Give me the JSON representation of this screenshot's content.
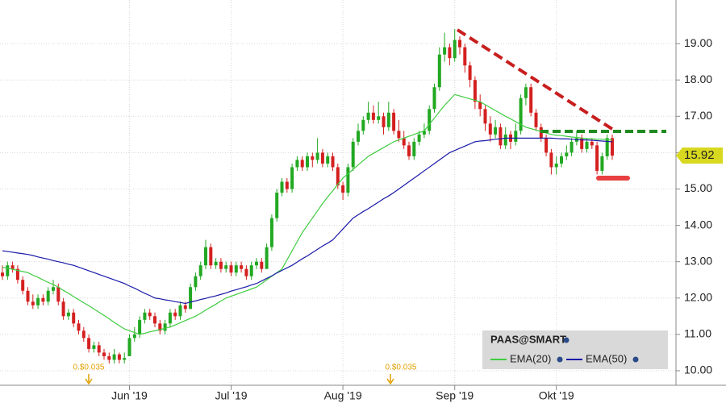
{
  "chart_data": {
    "type": "candlestick",
    "categories": [
      null,
      null,
      null,
      null,
      null,
      null,
      null,
      null,
      null,
      null,
      null,
      null,
      null,
      null,
      null,
      null,
      null,
      null,
      null,
      null,
      null,
      null,
      null,
      null,
      null,
      "Jun '19",
      null,
      null,
      null,
      null,
      null,
      null,
      null,
      null,
      null,
      null,
      null,
      null,
      null,
      null,
      null,
      null,
      null,
      null,
      null,
      "Jul '19",
      null,
      null,
      null,
      null,
      null,
      null,
      null,
      null,
      null,
      null,
      null,
      null,
      null,
      null,
      null,
      null,
      null,
      null,
      null,
      null,
      null,
      "Aug '19",
      null,
      null,
      null,
      null,
      null,
      null,
      null,
      null,
      null,
      null,
      null,
      null,
      null,
      null,
      null,
      null,
      null,
      null,
      null,
      null,
      null,
      "Sep '19",
      null,
      null,
      null,
      null,
      null,
      null,
      null,
      null,
      null,
      null,
      null,
      null,
      null,
      null,
      null,
      null,
      null,
      null,
      null,
      "Okt '19",
      null,
      null,
      null,
      null,
      null,
      null,
      null,
      null,
      null,
      null,
      null
    ],
    "ohlc": [
      [
        12.7,
        12.9,
        12.5,
        12.6
      ],
      [
        12.6,
        13.0,
        12.5,
        12.9
      ],
      [
        12.9,
        13.0,
        12.7,
        12.8
      ],
      [
        12.8,
        12.9,
        12.4,
        12.5
      ],
      [
        12.5,
        12.6,
        12.1,
        12.2
      ],
      [
        12.2,
        12.3,
        11.8,
        11.9
      ],
      [
        11.9,
        12.1,
        11.7,
        11.8
      ],
      [
        11.8,
        12.1,
        11.7,
        12.0
      ],
      [
        12.0,
        12.1,
        11.8,
        11.9
      ],
      [
        11.9,
        12.3,
        11.8,
        12.2
      ],
      [
        12.2,
        12.5,
        12.1,
        12.3
      ],
      [
        12.3,
        12.4,
        11.8,
        11.9
      ],
      [
        11.9,
        12.0,
        11.4,
        11.5
      ],
      [
        11.5,
        11.7,
        11.4,
        11.6
      ],
      [
        11.6,
        11.7,
        11.2,
        11.3
      ],
      [
        11.3,
        11.4,
        11.0,
        11.1
      ],
      [
        11.1,
        11.2,
        10.8,
        10.9
      ],
      [
        10.9,
        11.0,
        10.5,
        10.6
      ],
      [
        10.6,
        10.8,
        10.5,
        10.7
      ],
      [
        10.7,
        10.8,
        10.4,
        10.5
      ],
      [
        10.5,
        10.6,
        10.3,
        10.4
      ],
      [
        10.4,
        10.5,
        10.2,
        10.3
      ],
      [
        10.3,
        10.6,
        10.2,
        10.45
      ],
      [
        10.45,
        10.5,
        10.2,
        10.3
      ],
      [
        10.3,
        10.5,
        10.2,
        10.35
      ],
      [
        10.4,
        11.0,
        10.4,
        10.9
      ],
      [
        10.9,
        11.2,
        10.8,
        11.0
      ],
      [
        11.0,
        11.5,
        10.9,
        11.4
      ],
      [
        11.4,
        11.7,
        11.3,
        11.6
      ],
      [
        11.6,
        11.7,
        11.4,
        11.5
      ],
      [
        11.5,
        11.6,
        11.2,
        11.3
      ],
      [
        11.3,
        11.4,
        11.0,
        11.1
      ],
      [
        11.1,
        11.4,
        11.0,
        11.3
      ],
      [
        11.3,
        11.7,
        11.2,
        11.6
      ],
      [
        11.6,
        11.7,
        11.4,
        11.5
      ],
      [
        11.5,
        11.9,
        11.4,
        11.8
      ],
      [
        11.8,
        11.9,
        11.6,
        11.7
      ],
      [
        11.7,
        12.4,
        11.7,
        12.3
      ],
      [
        12.3,
        12.7,
        12.2,
        12.6
      ],
      [
        12.6,
        13.0,
        12.5,
        12.9
      ],
      [
        12.9,
        13.6,
        12.8,
        13.4
      ],
      [
        13.4,
        13.5,
        12.8,
        12.9
      ],
      [
        12.9,
        13.1,
        12.8,
        13.0
      ],
      [
        13.0,
        13.1,
        12.7,
        12.8
      ],
      [
        12.8,
        13.0,
        12.7,
        12.9
      ],
      [
        12.9,
        13.0,
        12.6,
        12.7
      ],
      [
        12.7,
        13.0,
        12.6,
        12.9
      ],
      [
        12.9,
        13.0,
        12.7,
        12.8
      ],
      [
        12.8,
        12.9,
        12.5,
        12.6
      ],
      [
        12.6,
        13.0,
        12.5,
        12.9
      ],
      [
        12.9,
        13.1,
        12.8,
        13.0
      ],
      [
        13.0,
        13.1,
        12.7,
        12.8
      ],
      [
        12.8,
        13.5,
        12.8,
        13.4
      ],
      [
        13.4,
        14.3,
        13.3,
        14.2
      ],
      [
        14.2,
        15.0,
        14.1,
        14.9
      ],
      [
        14.9,
        15.3,
        14.8,
        15.2
      ],
      [
        15.2,
        15.3,
        14.9,
        15.0
      ],
      [
        15.0,
        15.7,
        14.9,
        15.6
      ],
      [
        15.6,
        15.9,
        15.5,
        15.8
      ],
      [
        15.8,
        15.9,
        15.5,
        15.6
      ],
      [
        15.6,
        16.0,
        15.5,
        15.9
      ],
      [
        15.9,
        16.0,
        15.6,
        15.8
      ],
      [
        15.8,
        16.4,
        15.7,
        16.0
      ],
      [
        16.0,
        16.1,
        15.6,
        15.7
      ],
      [
        15.7,
        16.0,
        15.6,
        15.9
      ],
      [
        15.9,
        16.0,
        15.5,
        15.6
      ],
      [
        15.6,
        15.7,
        15.0,
        15.1
      ],
      [
        15.1,
        15.2,
        14.7,
        14.9
      ],
      [
        14.9,
        15.7,
        14.8,
        15.6
      ],
      [
        15.6,
        16.4,
        15.5,
        16.3
      ],
      [
        16.3,
        16.8,
        16.2,
        16.6
      ],
      [
        16.6,
        17.0,
        16.5,
        16.9
      ],
      [
        16.9,
        17.4,
        16.8,
        17.1
      ],
      [
        17.1,
        17.3,
        16.8,
        16.9
      ],
      [
        16.9,
        17.4,
        16.8,
        17.0
      ],
      [
        17.0,
        17.1,
        16.5,
        16.7
      ],
      [
        16.7,
        17.4,
        16.6,
        17.1
      ],
      [
        17.1,
        17.2,
        16.5,
        16.6
      ],
      [
        16.6,
        16.9,
        16.3,
        16.4
      ],
      [
        16.4,
        16.6,
        16.1,
        16.2
      ],
      [
        16.2,
        16.3,
        15.8,
        15.9
      ],
      [
        15.9,
        16.4,
        15.8,
        16.3
      ],
      [
        16.3,
        16.6,
        16.2,
        16.5
      ],
      [
        16.5,
        16.8,
        16.4,
        16.6
      ],
      [
        16.6,
        17.3,
        16.5,
        17.2
      ],
      [
        17.2,
        17.9,
        17.1,
        17.8
      ],
      [
        17.8,
        18.9,
        17.7,
        18.7
      ],
      [
        18.7,
        19.3,
        18.5,
        18.9
      ],
      [
        18.9,
        19.0,
        18.4,
        18.6
      ],
      [
        18.6,
        19.4,
        18.5,
        19.1
      ],
      [
        19.1,
        19.2,
        18.7,
        18.9
      ],
      [
        18.9,
        19.0,
        18.2,
        18.4
      ],
      [
        18.4,
        18.5,
        17.8,
        18.0
      ],
      [
        18.0,
        18.1,
        17.2,
        17.4
      ],
      [
        17.4,
        17.6,
        17.0,
        17.2
      ],
      [
        17.2,
        17.3,
        16.6,
        16.8
      ],
      [
        16.8,
        17.0,
        16.3,
        16.5
      ],
      [
        16.5,
        16.9,
        16.4,
        16.7
      ],
      [
        16.7,
        16.8,
        16.1,
        16.2
      ],
      [
        16.2,
        16.7,
        16.1,
        16.5
      ],
      [
        16.5,
        16.6,
        16.1,
        16.3
      ],
      [
        16.3,
        16.8,
        16.2,
        16.6
      ],
      [
        16.6,
        17.6,
        16.5,
        17.5
      ],
      [
        17.5,
        17.9,
        17.3,
        17.8
      ],
      [
        17.8,
        17.9,
        17.0,
        17.1
      ],
      [
        17.1,
        17.2,
        16.6,
        16.7
      ],
      [
        16.7,
        16.8,
        16.3,
        16.4
      ],
      [
        16.4,
        16.5,
        15.9,
        16.0
      ],
      [
        16.0,
        16.1,
        15.4,
        15.6
      ],
      [
        15.6,
        15.9,
        15.4,
        15.7
      ],
      [
        15.7,
        16.0,
        15.6,
        15.9
      ],
      [
        15.9,
        16.2,
        15.8,
        16.0
      ],
      [
        16.0,
        16.4,
        15.9,
        16.3
      ],
      [
        16.3,
        16.6,
        16.2,
        16.4
      ],
      [
        16.4,
        16.5,
        16.0,
        16.1
      ],
      [
        16.1,
        16.4,
        16.0,
        16.3
      ],
      [
        16.3,
        16.4,
        16.1,
        16.2
      ],
      [
        16.2,
        16.3,
        15.4,
        15.5
      ],
      [
        15.5,
        16.0,
        15.4,
        15.9
      ],
      [
        15.9,
        16.5,
        15.8,
        16.4
      ],
      [
        16.4,
        16.5,
        15.8,
        15.92
      ]
    ],
    "up_color": "#22a822",
    "down_color": "#d42020",
    "series": [
      {
        "name": "EMA(20)",
        "color": "#3fcc3f",
        "values": [
          12.85,
          12.82,
          12.79,
          12.76,
          12.73,
          12.7,
          12.63,
          12.57,
          12.5,
          12.43,
          12.37,
          12.3,
          12.21,
          12.13,
          12.04,
          11.96,
          11.87,
          11.79,
          11.7,
          11.61,
          11.52,
          11.43,
          11.33,
          11.24,
          11.15,
          11.1,
          11.05,
          11.0,
          11.03,
          11.07,
          11.1,
          11.13,
          11.17,
          11.2,
          11.26,
          11.32,
          11.38,
          11.44,
          11.5,
          11.58,
          11.67,
          11.75,
          11.83,
          11.92,
          12.0,
          12.05,
          12.1,
          12.15,
          12.2,
          12.25,
          12.3,
          12.4,
          12.5,
          12.6,
          12.7,
          12.8,
          13.05,
          13.3,
          13.55,
          13.8,
          14.0,
          14.2,
          14.4,
          14.6,
          14.78,
          14.95,
          15.13,
          15.3,
          15.42,
          15.54,
          15.66,
          15.78,
          15.9,
          15.98,
          16.06,
          16.14,
          16.22,
          16.3,
          16.35,
          16.4,
          16.45,
          16.5,
          16.55,
          16.6,
          16.78,
          16.95,
          17.13,
          17.3,
          17.45,
          17.6,
          17.56,
          17.52,
          17.48,
          17.44,
          17.4,
          17.32,
          17.24,
          17.16,
          17.08,
          17.0,
          16.93,
          16.85,
          16.78,
          16.7,
          16.66,
          16.62,
          16.58,
          16.54,
          16.5,
          16.48,
          16.47,
          16.45,
          16.43,
          16.42,
          16.4,
          16.39,
          16.38,
          16.37,
          16.37,
          16.36,
          16.35
        ]
      },
      {
        "name": "EMA(50)",
        "color": "#1a1aa8",
        "values": [
          13.3,
          13.28,
          13.26,
          13.24,
          13.22,
          13.2,
          13.17,
          13.13,
          13.1,
          13.07,
          13.03,
          13.0,
          12.97,
          12.93,
          12.9,
          12.85,
          12.8,
          12.75,
          12.7,
          12.65,
          12.6,
          12.55,
          12.5,
          12.45,
          12.4,
          12.33,
          12.27,
          12.2,
          12.13,
          12.07,
          12.0,
          11.98,
          11.95,
          11.93,
          11.9,
          11.88,
          11.85,
          11.89,
          11.92,
          11.96,
          11.99,
          12.03,
          12.06,
          12.1,
          12.14,
          12.19,
          12.23,
          12.27,
          12.31,
          12.36,
          12.4,
          12.47,
          12.54,
          12.61,
          12.69,
          12.76,
          12.83,
          12.9,
          12.99,
          13.08,
          13.16,
          13.25,
          13.34,
          13.43,
          13.51,
          13.6,
          13.75,
          13.9,
          14.05,
          14.2,
          14.29,
          14.38,
          14.46,
          14.55,
          14.64,
          14.73,
          14.81,
          14.9,
          15.0,
          15.1,
          15.2,
          15.3,
          15.4,
          15.5,
          15.6,
          15.7,
          15.8,
          15.9,
          16.0,
          16.06,
          16.12,
          16.18,
          16.24,
          16.3,
          16.32,
          16.33,
          16.35,
          16.37,
          16.38,
          16.4,
          16.4,
          16.4,
          16.4,
          16.4,
          16.4,
          16.4,
          16.4,
          16.4,
          16.4,
          16.39,
          16.38,
          16.38,
          16.37,
          16.36,
          16.35,
          16.35,
          16.34,
          16.33,
          16.32,
          16.31,
          16.3
        ]
      }
    ],
    "legend_title": "PAAS@SMART",
    "last_price": 15.92,
    "annotations": [
      "0.$0.035",
      "0.$0.035"
    ],
    "ylim": [
      9.6,
      20.2
    ],
    "yticks": [
      {
        "value": 10,
        "label": "10.00"
      },
      {
        "value": 11,
        "label": "11.00"
      },
      {
        "value": 12,
        "label": "12.00"
      },
      {
        "value": 13,
        "label": "13.00"
      },
      {
        "value": 14,
        "label": "14.00"
      },
      {
        "value": 15,
        "label": "15.00"
      },
      {
        "value": 16,
        "label": "16.00"
      },
      {
        "value": 17,
        "label": "17.00"
      },
      {
        "value": 18,
        "label": "18.00"
      },
      {
        "value": 19,
        "label": "19.00"
      }
    ],
    "grid": true
  }
}
